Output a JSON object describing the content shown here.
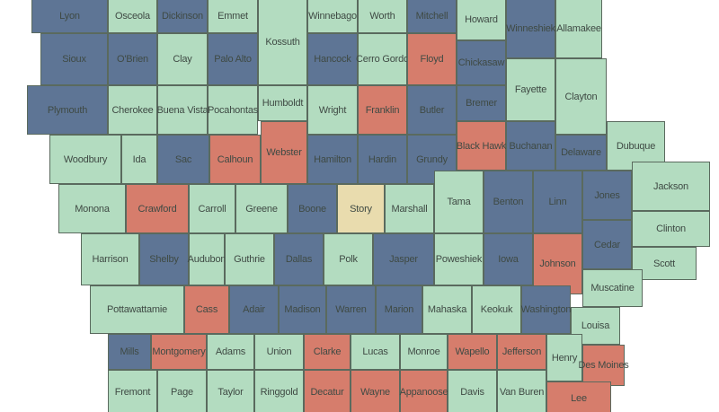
{
  "colors": {
    "green": "#b3dcc0",
    "blue": "#5e7595",
    "red": "#d67d6c",
    "tan": "#e9dcae"
  },
  "counties": [
    {
      "name": "Lyon",
      "c": "blue"
    },
    {
      "name": "Osceola",
      "c": "green"
    },
    {
      "name": "Dickinson",
      "c": "blue"
    },
    {
      "name": "Emmet",
      "c": "green"
    },
    {
      "name": "Kossuth",
      "c": "green"
    },
    {
      "name": "Winnebago",
      "c": "green"
    },
    {
      "name": "Worth",
      "c": "green"
    },
    {
      "name": "Mitchell",
      "c": "blue"
    },
    {
      "name": "Howard",
      "c": "green"
    },
    {
      "name": "Winneshiek",
      "c": "blue"
    },
    {
      "name": "Allamakee",
      "c": "green"
    },
    {
      "name": "Sioux",
      "c": "blue"
    },
    {
      "name": "O'Brien",
      "c": "blue"
    },
    {
      "name": "Clay",
      "c": "green"
    },
    {
      "name": "Palo Alto",
      "c": "blue"
    },
    {
      "name": "Hancock",
      "c": "blue"
    },
    {
      "name": "Cerro Gordo",
      "c": "green"
    },
    {
      "name": "Floyd",
      "c": "red"
    },
    {
      "name": "Chickasaw",
      "c": "blue"
    },
    {
      "name": "Plymouth",
      "c": "blue"
    },
    {
      "name": "Cherokee",
      "c": "green"
    },
    {
      "name": "Buena Vista",
      "c": "green"
    },
    {
      "name": "Pocahontas",
      "c": "green"
    },
    {
      "name": "Humboldt",
      "c": "green"
    },
    {
      "name": "Wright",
      "c": "green"
    },
    {
      "name": "Franklin",
      "c": "red"
    },
    {
      "name": "Butler",
      "c": "blue"
    },
    {
      "name": "Bremer",
      "c": "blue"
    },
    {
      "name": "Fayette",
      "c": "green"
    },
    {
      "name": "Clayton",
      "c": "green"
    },
    {
      "name": "Woodbury",
      "c": "green"
    },
    {
      "name": "Ida",
      "c": "green"
    },
    {
      "name": "Sac",
      "c": "blue"
    },
    {
      "name": "Calhoun",
      "c": "red"
    },
    {
      "name": "Webster",
      "c": "red"
    },
    {
      "name": "Hamilton",
      "c": "blue"
    },
    {
      "name": "Hardin",
      "c": "blue"
    },
    {
      "name": "Grundy",
      "c": "blue"
    },
    {
      "name": "Black Hawk",
      "c": "red"
    },
    {
      "name": "Buchanan",
      "c": "blue"
    },
    {
      "name": "Delaware",
      "c": "blue"
    },
    {
      "name": "Dubuque",
      "c": "green"
    },
    {
      "name": "Monona",
      "c": "green"
    },
    {
      "name": "Crawford",
      "c": "red"
    },
    {
      "name": "Carroll",
      "c": "green"
    },
    {
      "name": "Greene",
      "c": "green"
    },
    {
      "name": "Boone",
      "c": "blue"
    },
    {
      "name": "Story",
      "c": "tan"
    },
    {
      "name": "Marshall",
      "c": "green"
    },
    {
      "name": "Tama",
      "c": "green"
    },
    {
      "name": "Benton",
      "c": "blue"
    },
    {
      "name": "Linn",
      "c": "blue"
    },
    {
      "name": "Jones",
      "c": "blue"
    },
    {
      "name": "Jackson",
      "c": "green"
    },
    {
      "name": "Clinton",
      "c": "green"
    },
    {
      "name": "Harrison",
      "c": "green"
    },
    {
      "name": "Shelby",
      "c": "blue"
    },
    {
      "name": "Audubon",
      "c": "green"
    },
    {
      "name": "Guthrie",
      "c": "green"
    },
    {
      "name": "Dallas",
      "c": "blue"
    },
    {
      "name": "Polk",
      "c": "green"
    },
    {
      "name": "Jasper",
      "c": "blue"
    },
    {
      "name": "Poweshiek",
      "c": "green"
    },
    {
      "name": "Iowa",
      "c": "blue"
    },
    {
      "name": "Johnson",
      "c": "red"
    },
    {
      "name": "Cedar",
      "c": "blue"
    },
    {
      "name": "Scott",
      "c": "green"
    },
    {
      "name": "Muscatine",
      "c": "green"
    },
    {
      "name": "Pottawattamie",
      "c": "green"
    },
    {
      "name": "Cass",
      "c": "red"
    },
    {
      "name": "Adair",
      "c": "blue"
    },
    {
      "name": "Madison",
      "c": "blue"
    },
    {
      "name": "Warren",
      "c": "blue"
    },
    {
      "name": "Marion",
      "c": "blue"
    },
    {
      "name": "Mahaska",
      "c": "green"
    },
    {
      "name": "Keokuk",
      "c": "green"
    },
    {
      "name": "Washington",
      "c": "blue"
    },
    {
      "name": "Louisa",
      "c": "green"
    },
    {
      "name": "Mills",
      "c": "blue"
    },
    {
      "name": "Montgomery",
      "c": "red"
    },
    {
      "name": "Adams",
      "c": "green"
    },
    {
      "name": "Union",
      "c": "green"
    },
    {
      "name": "Clarke",
      "c": "red"
    },
    {
      "name": "Lucas",
      "c": "green"
    },
    {
      "name": "Monroe",
      "c": "green"
    },
    {
      "name": "Wapello",
      "c": "red"
    },
    {
      "name": "Jefferson",
      "c": "red"
    },
    {
      "name": "Henry",
      "c": "green"
    },
    {
      "name": "Des Moines",
      "c": "red"
    },
    {
      "name": "Fremont",
      "c": "green"
    },
    {
      "name": "Page",
      "c": "green"
    },
    {
      "name": "Taylor",
      "c": "green"
    },
    {
      "name": "Ringgold",
      "c": "green"
    },
    {
      "name": "Decatur",
      "c": "red"
    },
    {
      "name": "Wayne",
      "c": "red"
    },
    {
      "name": "Appanoose",
      "c": "red"
    },
    {
      "name": "Davis",
      "c": "green"
    },
    {
      "name": "Van Buren",
      "c": "green"
    },
    {
      "name": "Lee",
      "c": "red"
    }
  ]
}
